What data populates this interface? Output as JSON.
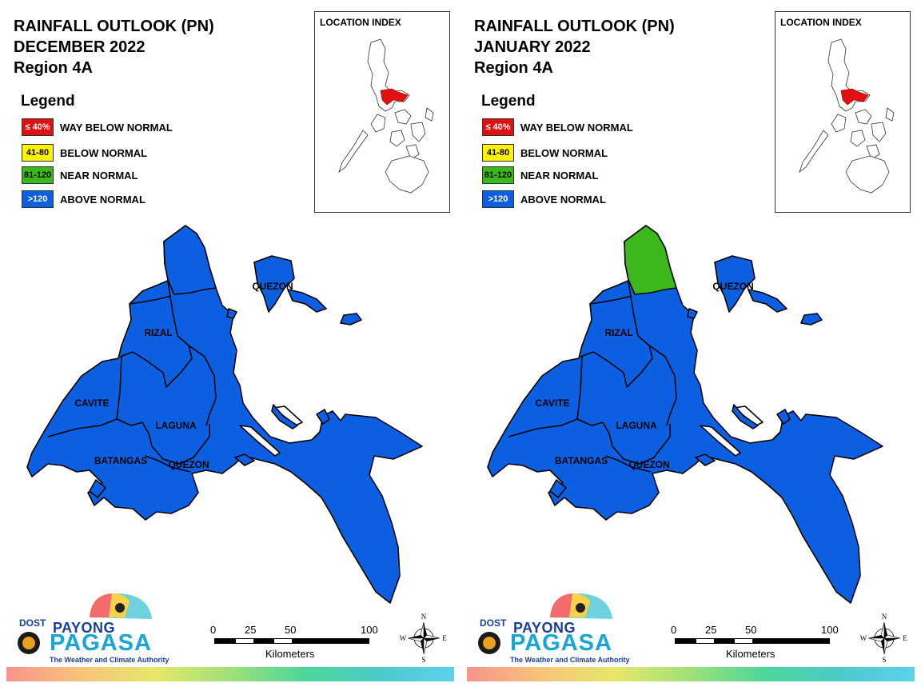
{
  "colors": {
    "way_below": "#e01010",
    "below": "#fdf200",
    "near": "#3cb81c",
    "above": "#0b5fe0",
    "map_fill": "#0b5fe0"
  },
  "panels": [
    {
      "title_line1": "RAINFALL OUTLOOK (PN)",
      "title_line2": "DECEMBER 2022",
      "title_line3": "Region 4A",
      "legend_title": "Legend",
      "legend": [
        {
          "code": "≤ 40%",
          "label": "WAY BELOW NORMAL"
        },
        {
          "code": "41-80",
          "label": "BELOW NORMAL"
        },
        {
          "code": "81-120",
          "label": "NEAR NORMAL"
        },
        {
          "code": ">120",
          "label": "ABOVE NORMAL"
        }
      ],
      "location_index_title": "LOCATION INDEX",
      "provinces": {
        "quezon_north": "QUEZON",
        "rizal": "RIZAL",
        "cavite": "CAVITE",
        "laguna": "LAGUNA",
        "batangas": "BATANGAS",
        "quezon_south": "QUEZON"
      },
      "north_quezon_category": "above",
      "scale": {
        "t0": "0",
        "t25": "25",
        "t50": "50",
        "t100": "100",
        "units": "Kilometers"
      },
      "logo": {
        "dost": "DOST",
        "payong": "PAYONG",
        "pagasa": "PAGASA",
        "tagline": "The Weather and Climate Authority"
      },
      "compass": {
        "n": "N",
        "s": "S",
        "e": "E",
        "w": "W"
      }
    },
    {
      "title_line1": "RAINFALL OUTLOOK (PN)",
      "title_line2": "JANUARY 2022",
      "title_line3": "Region 4A",
      "legend_title": "Legend",
      "legend": [
        {
          "code": "≤ 40%",
          "label": "WAY BELOW NORMAL"
        },
        {
          "code": "41-80",
          "label": "BELOW NORMAL"
        },
        {
          "code": "81-120",
          "label": "NEAR NORMAL"
        },
        {
          "code": ">120",
          "label": "ABOVE NORMAL"
        }
      ],
      "location_index_title": "LOCATION INDEX",
      "provinces": {
        "quezon_north": "QUEZON",
        "rizal": "RIZAL",
        "cavite": "CAVITE",
        "laguna": "LAGUNA",
        "batangas": "BATANGAS",
        "quezon_south": "QUEZON"
      },
      "north_quezon_category": "near",
      "scale": {
        "t0": "0",
        "t25": "25",
        "t50": "50",
        "t100": "100",
        "units": "Kilometers"
      },
      "logo": {
        "dost": "DOST",
        "payong": "PAYONG",
        "pagasa": "PAGASA",
        "tagline": "The Weather and Climate Authority"
      },
      "compass": {
        "n": "N",
        "s": "S",
        "e": "E",
        "w": "W"
      }
    }
  ]
}
